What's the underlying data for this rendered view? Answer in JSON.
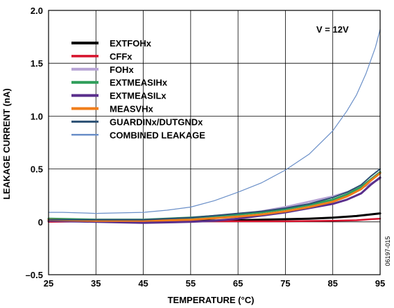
{
  "chart_data": {
    "type": "line",
    "xlabel": "TEMPERATURE (°C)",
    "ylabel": "LEAKAGE CURRENT (nA)",
    "xlim": [
      25,
      95
    ],
    "ylim": [
      -0.5,
      2.0
    ],
    "xticks": [
      25,
      35,
      45,
      55,
      65,
      75,
      85,
      95
    ],
    "yticks": [
      -0.5,
      0,
      0.5,
      1.0,
      1.5,
      2.0
    ],
    "ytick_labels": [
      "–0.5",
      "0",
      "0.5",
      "1.0",
      "1.5",
      "2.0"
    ],
    "grid": true,
    "legend_position": "top-left",
    "annotation": "V = 12V",
    "figure_id": "06197-015",
    "series": [
      {
        "name": "EXTFOHx",
        "color": "#000000",
        "width": 3,
        "x": [
          25,
          35,
          45,
          55,
          65,
          75,
          80,
          85,
          90,
          93,
          95
        ],
        "y": [
          0.01,
          0.01,
          0.005,
          0.01,
          0.015,
          0.025,
          0.03,
          0.04,
          0.055,
          0.07,
          0.08
        ]
      },
      {
        "name": "CFFx",
        "color": "#d6122c",
        "width": 2.5,
        "x": [
          25,
          35,
          45,
          55,
          65,
          75,
          85,
          90,
          93,
          95
        ],
        "y": [
          0.0,
          0.005,
          0.005,
          0.005,
          0.005,
          0.005,
          0.01,
          0.015,
          0.025,
          0.03
        ]
      },
      {
        "name": "FOHx",
        "color": "#b6a2d4",
        "width": 3,
        "x": [
          25,
          35,
          45,
          55,
          60,
          65,
          70,
          75,
          80,
          85,
          88,
          91,
          93,
          95
        ],
        "y": [
          0.02,
          0.02,
          0.02,
          0.03,
          0.045,
          0.065,
          0.1,
          0.14,
          0.19,
          0.24,
          0.28,
          0.32,
          0.36,
          0.41
        ]
      },
      {
        "name": "EXTMEASIHx",
        "color": "#2f9e5a",
        "width": 3,
        "x": [
          25,
          35,
          45,
          55,
          60,
          65,
          70,
          75,
          80,
          85,
          88,
          91,
          93,
          95
        ],
        "y": [
          0.03,
          0.02,
          0.02,
          0.04,
          0.055,
          0.07,
          0.09,
          0.12,
          0.16,
          0.21,
          0.26,
          0.33,
          0.4,
          0.47
        ]
      },
      {
        "name": "EXTMEASILx",
        "color": "#5a2f8c",
        "width": 3,
        "x": [
          25,
          35,
          45,
          55,
          60,
          65,
          70,
          75,
          80,
          85,
          88,
          91,
          93,
          95
        ],
        "y": [
          0.01,
          0.0,
          -0.01,
          0.0,
          0.01,
          0.03,
          0.06,
          0.09,
          0.13,
          0.17,
          0.21,
          0.27,
          0.35,
          0.42
        ]
      },
      {
        "name": "MEASVHx",
        "color": "#f07d1a",
        "width": 3,
        "x": [
          25,
          35,
          45,
          55,
          60,
          65,
          70,
          75,
          80,
          85,
          88,
          91,
          93,
          95
        ],
        "y": [
          0.02,
          0.01,
          0.01,
          0.02,
          0.035,
          0.05,
          0.07,
          0.1,
          0.14,
          0.19,
          0.24,
          0.31,
          0.39,
          0.46
        ]
      },
      {
        "name": "GUARDINx/DUTGNDx",
        "color": "#2b4f73",
        "width": 2,
        "x": [
          25,
          35,
          45,
          55,
          60,
          65,
          70,
          75,
          80,
          85,
          88,
          91,
          93,
          95
        ],
        "y": [
          0.02,
          0.02,
          0.02,
          0.04,
          0.06,
          0.08,
          0.1,
          0.13,
          0.17,
          0.23,
          0.28,
          0.35,
          0.43,
          0.5
        ]
      },
      {
        "name": "COMBINED LEAKAGE",
        "color": "#6a8fc8",
        "width": 1.2,
        "x": [
          25,
          28,
          35,
          45,
          50,
          55,
          60,
          65,
          70,
          75,
          80,
          85,
          88,
          90,
          92,
          94,
          95
        ],
        "y": [
          0.09,
          0.09,
          0.08,
          0.09,
          0.11,
          0.14,
          0.2,
          0.28,
          0.37,
          0.49,
          0.64,
          0.86,
          1.05,
          1.2,
          1.4,
          1.65,
          1.82
        ]
      }
    ]
  }
}
